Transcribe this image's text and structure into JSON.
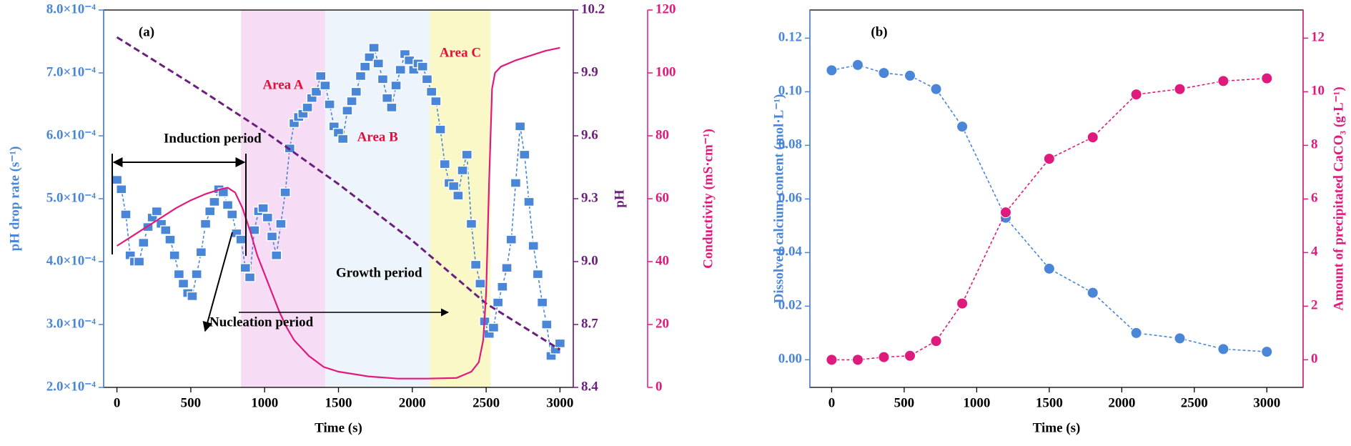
{
  "chart_data": [
    {
      "type": "line",
      "panel_label": "(a)",
      "xlabel": "Time (s)",
      "ylabel": "pH drop rate (s⁻¹)",
      "y2label": "pH",
      "y3label": "Conductivity (mS·cm⁻¹)",
      "ycolor": "#4a86d8",
      "y2color": "#6b1f7c",
      "y3color": "#e0197d",
      "xlim": [
        -90,
        3090
      ],
      "xticks": [
        0,
        500,
        1000,
        1500,
        2000,
        2500,
        3000
      ],
      "ylim": [
        0.0002,
        0.0008
      ],
      "yticks": [
        {
          "value": 0.0002,
          "label": "2.0×10⁻⁴"
        },
        {
          "value": 0.0003,
          "label": "3.0×10⁻⁴"
        },
        {
          "value": 0.0004,
          "label": "4.0×10⁻⁴"
        },
        {
          "value": 0.0005,
          "label": "5.0×10⁻⁴"
        },
        {
          "value": 0.0006,
          "label": "6.0×10⁻⁴"
        },
        {
          "value": 0.0007,
          "label": "7.0×10⁻⁴"
        },
        {
          "value": 0.0008,
          "label": "8.0×10⁻⁴"
        }
      ],
      "y2lim": [
        8.4,
        10.2
      ],
      "y2ticks": [
        8.4,
        8.7,
        {
          "value": 9.0,
          "label": "9.0"
        },
        9.3,
        9.6,
        9.9,
        10.2
      ],
      "y3lim": [
        0,
        120
      ],
      "y3ticks": [
        0,
        20,
        40,
        60,
        80,
        100,
        120
      ],
      "regions": [
        {
          "label": "Area A",
          "x": [
            840,
            1410
          ],
          "color": "#f6dcf4"
        },
        {
          "label": "Area B",
          "x": [
            1410,
            2120
          ],
          "color": "#eef4fc"
        },
        {
          "label": "Area C",
          "x": [
            2120,
            2530
          ],
          "color": "#fbf8c8"
        }
      ],
      "region_label_color": "#e0103a",
      "annotations": [
        "Induction period",
        "Nucleation period",
        "Growth period"
      ],
      "series": [
        {
          "name": "pH drop rate",
          "axis": "y",
          "color": "#4a86d8",
          "line_style": "dashed",
          "marker": "square",
          "x": [
            0,
            30,
            60,
            90,
            120,
            150,
            180,
            210,
            240,
            270,
            300,
            330,
            360,
            390,
            420,
            450,
            480,
            510,
            540,
            570,
            600,
            630,
            660,
            690,
            720,
            750,
            780,
            810,
            840,
            870,
            900,
            930,
            960,
            990,
            1020,
            1050,
            1080,
            1110,
            1140,
            1170,
            1200,
            1230,
            1260,
            1290,
            1320,
            1350,
            1380,
            1410,
            1440,
            1470,
            1500,
            1530,
            1560,
            1590,
            1620,
            1650,
            1680,
            1710,
            1740,
            1770,
            1800,
            1830,
            1860,
            1890,
            1920,
            1950,
            1980,
            2010,
            2040,
            2070,
            2100,
            2130,
            2160,
            2190,
            2220,
            2250,
            2280,
            2310,
            2340,
            2370,
            2400,
            2430,
            2460,
            2490,
            2520,
            2550,
            2580,
            2610,
            2640,
            2670,
            2700,
            2730,
            2760,
            2790,
            2820,
            2850,
            2880,
            2910,
            2940,
            2970,
            3000
          ],
          "values": [
            0.00053,
            0.000515,
            0.000475,
            0.00041,
            0.0004,
            0.0004,
            0.00043,
            0.000455,
            0.00047,
            0.00048,
            0.00046,
            0.00045,
            0.000435,
            0.00041,
            0.00038,
            0.000365,
            0.00035,
            0.000345,
            0.00038,
            0.000415,
            0.00046,
            0.00048,
            0.000495,
            0.000515,
            0.00051,
            0.00049,
            0.000475,
            0.000445,
            0.000435,
            0.00039,
            0.000375,
            0.00045,
            0.00048,
            0.000485,
            0.00047,
            0.00044,
            0.00041,
            0.00046,
            0.00051,
            0.00058,
            0.00062,
            0.00063,
            0.000635,
            0.000645,
            0.00066,
            0.00067,
            0.000695,
            0.00068,
            0.00065,
            0.000615,
            0.000605,
            0.000595,
            0.00064,
            0.000655,
            0.00067,
            0.000695,
            0.00071,
            0.000725,
            0.00074,
            0.000715,
            0.00069,
            0.00066,
            0.000645,
            0.00068,
            0.000705,
            0.00073,
            0.00072,
            0.000705,
            0.000715,
            0.00071,
            0.00069,
            0.00067,
            0.000655,
            0.00061,
            0.000555,
            0.000525,
            0.00052,
            0.000505,
            0.000545,
            0.00057,
            0.00046,
            0.000395,
            0.000365,
            0.000305,
            0.000285,
            0.000295,
            0.000335,
            0.00036,
            0.00039,
            0.000435,
            0.000525,
            0.000615,
            0.00057,
            0.000495,
            0.000425,
            0.00038,
            0.000335,
            0.0003,
            0.00025,
            0.00026,
            0.00027
          ]
        },
        {
          "name": "pH",
          "axis": "y2",
          "color": "#6b1f7c",
          "line_style": "dashed",
          "x": [
            0,
            500,
            1000,
            1500,
            2000,
            2500,
            3000
          ],
          "values": [
            10.07,
            9.85,
            9.62,
            9.37,
            9.1,
            8.8,
            8.58
          ]
        },
        {
          "name": "Conductivity",
          "axis": "y3",
          "color": "#e0197d",
          "line_style": "solid",
          "x": [
            0,
            100,
            200,
            300,
            400,
            500,
            600,
            700,
            750,
            800,
            850,
            900,
            950,
            1000,
            1050,
            1100,
            1150,
            1200,
            1300,
            1400,
            1500,
            1700,
            1900,
            2100,
            2300,
            2400,
            2450,
            2480,
            2500,
            2520,
            2540,
            2560,
            2600,
            2700,
            2800,
            2900,
            3000
          ],
          "values": [
            45,
            48,
            51,
            54,
            57,
            59.5,
            61.5,
            63,
            63.5,
            62,
            57,
            50,
            42,
            36,
            30,
            24,
            19,
            15,
            10,
            6.5,
            5,
            3.5,
            2.8,
            2.8,
            3,
            5,
            8,
            15,
            30,
            65,
            95,
            100,
            102,
            104,
            105.5,
            107,
            108
          ]
        }
      ]
    },
    {
      "type": "line",
      "panel_label": "(b)",
      "xlabel": "Time (s)",
      "ylabel": "Dissolved calcium content (mol·L⁻¹)",
      "y2label": "Amount of precipitated CaCO₃ (g·L⁻¹)",
      "ycolor": "#4a86d8",
      "y2color": "#e0197d",
      "xlim": [
        -150,
        3250
      ],
      "xticks": [
        0,
        500,
        1000,
        1500,
        2000,
        2500,
        3000
      ],
      "ylim": [
        -0.0103,
        0.1305
      ],
      "yticks": [
        {
          "value": 0,
          "label": "0.00"
        },
        0.02,
        0.04,
        0.06,
        0.08,
        {
          "value": 0.1,
          "label": "0.10"
        },
        0.12
      ],
      "y2lim": [
        -1.03,
        13.05
      ],
      "y2ticks": [
        0,
        2,
        4,
        6,
        8,
        10,
        12
      ],
      "series": [
        {
          "name": "Dissolved calcium content",
          "axis": "y",
          "color": "#4a86d8",
          "line_style": "dashed",
          "marker": "circle",
          "x": [
            0,
            180,
            360,
            540,
            720,
            900,
            1200,
            1500,
            1800,
            2100,
            2400,
            2700,
            3000
          ],
          "values": [
            0.108,
            0.11,
            0.107,
            0.106,
            0.101,
            0.087,
            0.053,
            0.034,
            0.025,
            0.01,
            0.008,
            0.004,
            0.003
          ]
        },
        {
          "name": "Amount of precipitated CaCO3",
          "axis": "y2",
          "color": "#e0197d",
          "line_style": "dashed",
          "marker": "circle",
          "x": [
            0,
            180,
            360,
            540,
            720,
            900,
            1200,
            1500,
            1800,
            2100,
            2400,
            2700,
            3000
          ],
          "values": [
            0,
            0,
            0.1,
            0.15,
            0.7,
            2.1,
            5.5,
            7.5,
            8.3,
            9.9,
            10.1,
            10.4,
            10.5
          ]
        }
      ]
    }
  ]
}
